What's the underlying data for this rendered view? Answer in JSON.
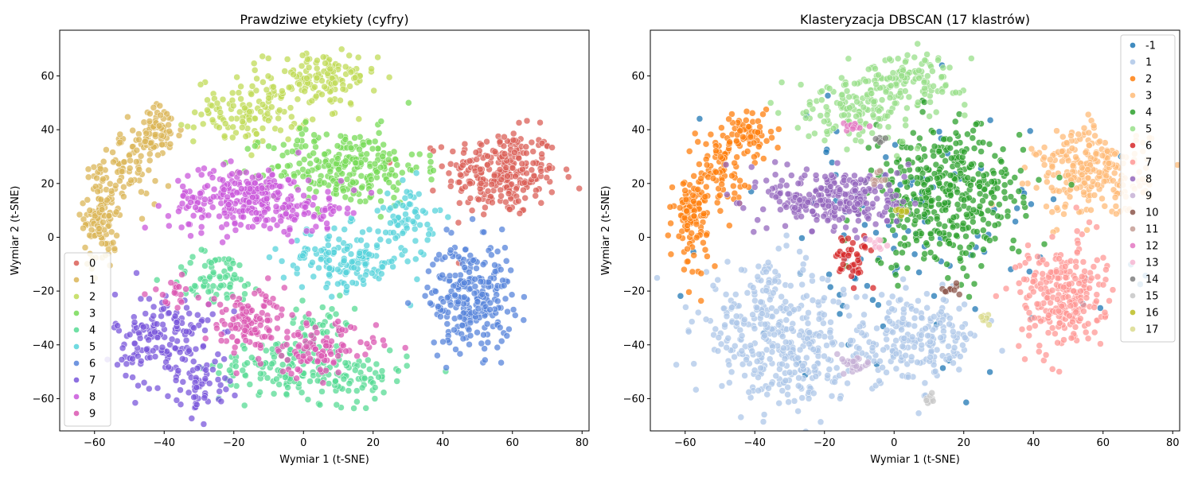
{
  "chart_data": [
    {
      "type": "scatter",
      "title": "Prawdziwe etykiety (cyfry)",
      "xlabel": "Wymiar 1 (t-SNE)",
      "ylabel": "Wymiar 2 (t-SNE)",
      "xlim": [
        -70,
        82
      ],
      "ylim": [
        -72,
        77
      ],
      "xticks": [
        -60,
        -40,
        -20,
        0,
        20,
        40,
        60,
        80
      ],
      "yticks": [
        -60,
        -40,
        -20,
        0,
        20,
        40,
        60
      ],
      "legend_position": "lower-left",
      "grid": false,
      "series": [
        {
          "name": "0",
          "color": "#db5f57",
          "clusters": [
            {
              "cx": 57,
              "cy": 24,
              "sx": 8,
              "sy": 8,
              "n": 260
            }
          ]
        },
        {
          "name": "1",
          "color": "#dbb557",
          "clusters": [
            {
              "cx": -58,
              "cy": 8,
              "sx": 2.5,
              "sy": 10,
              "n": 110
            },
            {
              "cx": -50,
              "cy": 27,
              "sx": 4,
              "sy": 7,
              "n": 80
            },
            {
              "cx": -41,
              "cy": 39,
              "sx": 3,
              "sy": 5,
              "n": 60
            }
          ]
        },
        {
          "name": "2",
          "color": "#c0db57",
          "clusters": [
            {
              "cx": -15,
              "cy": 47,
              "sx": 8,
              "sy": 6,
              "n": 130
            },
            {
              "cx": 5,
              "cy": 59,
              "sx": 8,
              "sy": 5,
              "n": 120
            }
          ]
        },
        {
          "name": "3",
          "color": "#77db57",
          "clusters": [
            {
              "cx": 12,
              "cy": 26,
              "sx": 11,
              "sy": 7,
              "n": 260
            }
          ]
        },
        {
          "name": "4",
          "color": "#57db94",
          "clusters": [
            {
              "cx": -25,
              "cy": -15,
              "sx": 7,
              "sy": 5,
              "n": 70
            },
            {
              "cx": -8,
              "cy": -48,
              "sx": 8,
              "sy": 5,
              "n": 90
            },
            {
              "cx": 12,
              "cy": -52,
              "sx": 9,
              "sy": 5,
              "n": 100
            },
            {
              "cx": 5,
              "cy": -32,
              "sx": 5,
              "sy": 4,
              "n": 40
            }
          ]
        },
        {
          "name": "5",
          "color": "#57d3db",
          "clusters": [
            {
              "cx": 12,
              "cy": -8,
              "sx": 9,
              "sy": 6,
              "n": 160
            },
            {
              "cx": 30,
              "cy": 8,
              "sx": 4,
              "sy": 6,
              "n": 60
            }
          ]
        },
        {
          "name": "6",
          "color": "#5784db",
          "clusters": [
            {
              "cx": 48,
              "cy": -22,
              "sx": 6,
              "sy": 10,
              "n": 260
            }
          ]
        },
        {
          "name": "7",
          "color": "#7957db",
          "clusters": [
            {
              "cx": -40,
              "cy": -38,
              "sx": 7,
              "sy": 9,
              "n": 170
            },
            {
              "cx": -29,
              "cy": -55,
              "sx": 4,
              "sy": 5,
              "n": 50
            }
          ]
        },
        {
          "name": "8",
          "color": "#c957db",
          "clusters": [
            {
              "cx": -16,
              "cy": 14,
              "sx": 11,
              "sy": 6,
              "n": 280
            },
            {
              "cx": 5,
              "cy": 10,
              "sx": 4,
              "sy": 3,
              "n": 30
            }
          ]
        },
        {
          "name": "9",
          "color": "#db57b2",
          "clusters": [
            {
              "cx": -15,
              "cy": -32,
              "sx": 7,
              "sy": 6,
              "n": 120
            },
            {
              "cx": 5,
              "cy": -42,
              "sx": 8,
              "sy": 5,
              "n": 100
            },
            {
              "cx": -38,
              "cy": -20,
              "sx": 3,
              "sy": 3,
              "n": 20
            }
          ]
        }
      ]
    },
    {
      "type": "scatter",
      "title": "Klasteryzacja DBSCAN (17 klastrów)",
      "xlabel": "Wymiar 1 (t-SNE)",
      "ylabel": "Wymiar 2 (t-SNE)",
      "xlim": [
        -70,
        82
      ],
      "ylim": [
        -72,
        77
      ],
      "xticks": [
        -60,
        -40,
        -20,
        0,
        20,
        40,
        60,
        80
      ],
      "yticks": [
        -60,
        -40,
        -20,
        0,
        20,
        40,
        60
      ],
      "legend_position": "upper-right",
      "grid": false,
      "series": [
        {
          "name": "-1",
          "color": "#1f77b4",
          "clusters": [
            {
              "cx": 5,
              "cy": 0,
              "sx": 30,
              "sy": 25,
              "n": 110
            }
          ]
        },
        {
          "name": "1",
          "color": "#aec7e8",
          "clusters": [
            {
              "cx": -35,
              "cy": -35,
              "sx": 11,
              "sy": 12,
              "n": 320
            },
            {
              "cx": 5,
              "cy": -38,
              "sx": 10,
              "sy": 8,
              "n": 220
            },
            {
              "cx": -25,
              "cy": -52,
              "sx": 5,
              "sy": 6,
              "n": 60
            }
          ]
        },
        {
          "name": "2",
          "color": "#ff7f0e",
          "clusters": [
            {
              "cx": -58,
              "cy": 8,
              "sx": 2.5,
              "sy": 9,
              "n": 110
            },
            {
              "cx": -50,
              "cy": 27,
              "sx": 4,
              "sy": 7,
              "n": 80
            },
            {
              "cx": -41,
              "cy": 39,
              "sx": 3,
              "sy": 5,
              "n": 60
            }
          ]
        },
        {
          "name": "3",
          "color": "#ffbb78",
          "clusters": [
            {
              "cx": 57,
              "cy": 24,
              "sx": 8,
              "sy": 8,
              "n": 260
            }
          ]
        },
        {
          "name": "4",
          "color": "#2ca02c",
          "clusters": [
            {
              "cx": 15,
              "cy": 15,
              "sx": 11,
              "sy": 13,
              "n": 420
            }
          ]
        },
        {
          "name": "5",
          "color": "#98df8a",
          "clusters": [
            {
              "cx": -12,
              "cy": 48,
              "sx": 8,
              "sy": 6,
              "n": 130
            },
            {
              "cx": 5,
              "cy": 59,
              "sx": 8,
              "sy": 5,
              "n": 120
            }
          ]
        },
        {
          "name": "6",
          "color": "#d62728",
          "clusters": [
            {
              "cx": -12,
              "cy": -8,
              "sx": 3,
              "sy": 4,
              "n": 40
            }
          ]
        },
        {
          "name": "7",
          "color": "#ff9896",
          "clusters": [
            {
              "cx": 48,
              "cy": -22,
              "sx": 6,
              "sy": 10,
              "n": 260
            }
          ]
        },
        {
          "name": "8",
          "color": "#9467bd",
          "clusters": [
            {
              "cx": -16,
              "cy": 14,
              "sx": 10,
              "sy": 6,
              "n": 260
            }
          ]
        },
        {
          "name": "9",
          "color": "#c5b0d5",
          "clusters": [
            {
              "cx": -12,
              "cy": -47,
              "sx": 3,
              "sy": 2,
              "n": 25
            }
          ]
        },
        {
          "name": "10",
          "color": "#8c564b",
          "clusters": [
            {
              "cx": 16,
              "cy": -19,
              "sx": 1.5,
              "sy": 1.5,
              "n": 10
            }
          ]
        },
        {
          "name": "11",
          "color": "#c49c94",
          "clusters": [
            {
              "cx": -4,
              "cy": 22,
              "sx": 1.2,
              "sy": 1.2,
              "n": 8
            }
          ]
        },
        {
          "name": "12",
          "color": "#e377c2",
          "clusters": [
            {
              "cx": -12,
              "cy": 41,
              "sx": 2,
              "sy": 1,
              "n": 12
            }
          ]
        },
        {
          "name": "13",
          "color": "#f7b6d2",
          "clusters": [
            {
              "cx": -4,
              "cy": -2,
              "sx": 1.2,
              "sy": 1.2,
              "n": 8
            }
          ]
        },
        {
          "name": "14",
          "color": "#7f7f7f",
          "clusters": [
            {
              "cx": -4,
              "cy": 36,
              "sx": 1,
              "sy": 1,
              "n": 6
            }
          ]
        },
        {
          "name": "15",
          "color": "#c7c7c7",
          "clusters": [
            {
              "cx": 10,
              "cy": -60,
              "sx": 1.5,
              "sy": 1,
              "n": 8
            }
          ]
        },
        {
          "name": "16",
          "color": "#bcbd22",
          "clusters": [
            {
              "cx": 3,
              "cy": 10,
              "sx": 1,
              "sy": 1,
              "n": 8
            }
          ]
        },
        {
          "name": "17",
          "color": "#dbdb8d",
          "clusters": [
            {
              "cx": 26,
              "cy": -30,
              "sx": 1,
              "sy": 1.5,
              "n": 8
            }
          ]
        }
      ]
    }
  ]
}
